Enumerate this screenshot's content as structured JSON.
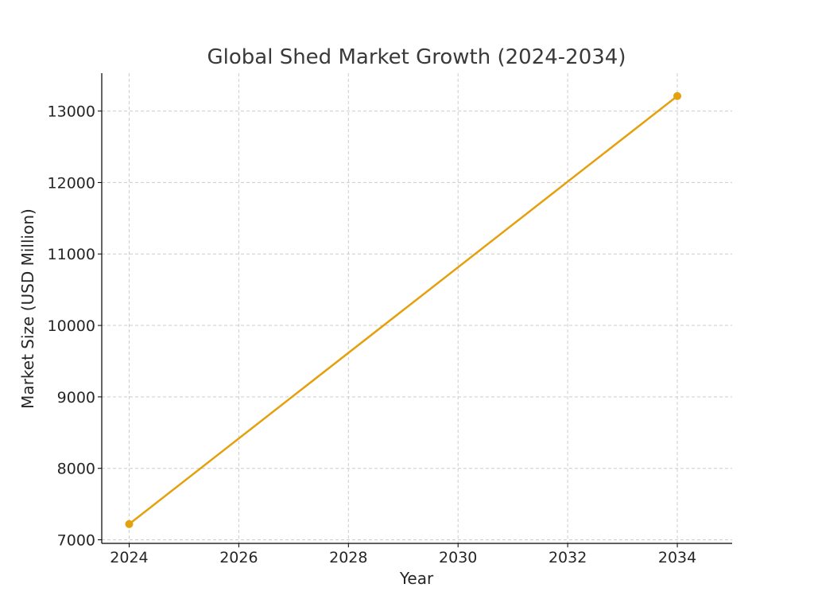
{
  "chart_data": {
    "type": "line",
    "title": "Global Shed Market Growth (2024-2034)",
    "xlabel": "Year",
    "ylabel": "Market Size (USD Million)",
    "x": [
      2024,
      2034
    ],
    "series": [
      {
        "values": [
          7220,
          13210
        ],
        "color": "#e5a00d"
      }
    ],
    "xlim": [
      2023.5,
      2035
    ],
    "ylim": [
      6950,
      13530
    ],
    "xticks": [
      2024,
      2026,
      2028,
      2030,
      2032,
      2034
    ],
    "yticks": [
      7000,
      8000,
      9000,
      10000,
      11000,
      12000,
      13000
    ],
    "grid": true,
    "markers": true
  }
}
